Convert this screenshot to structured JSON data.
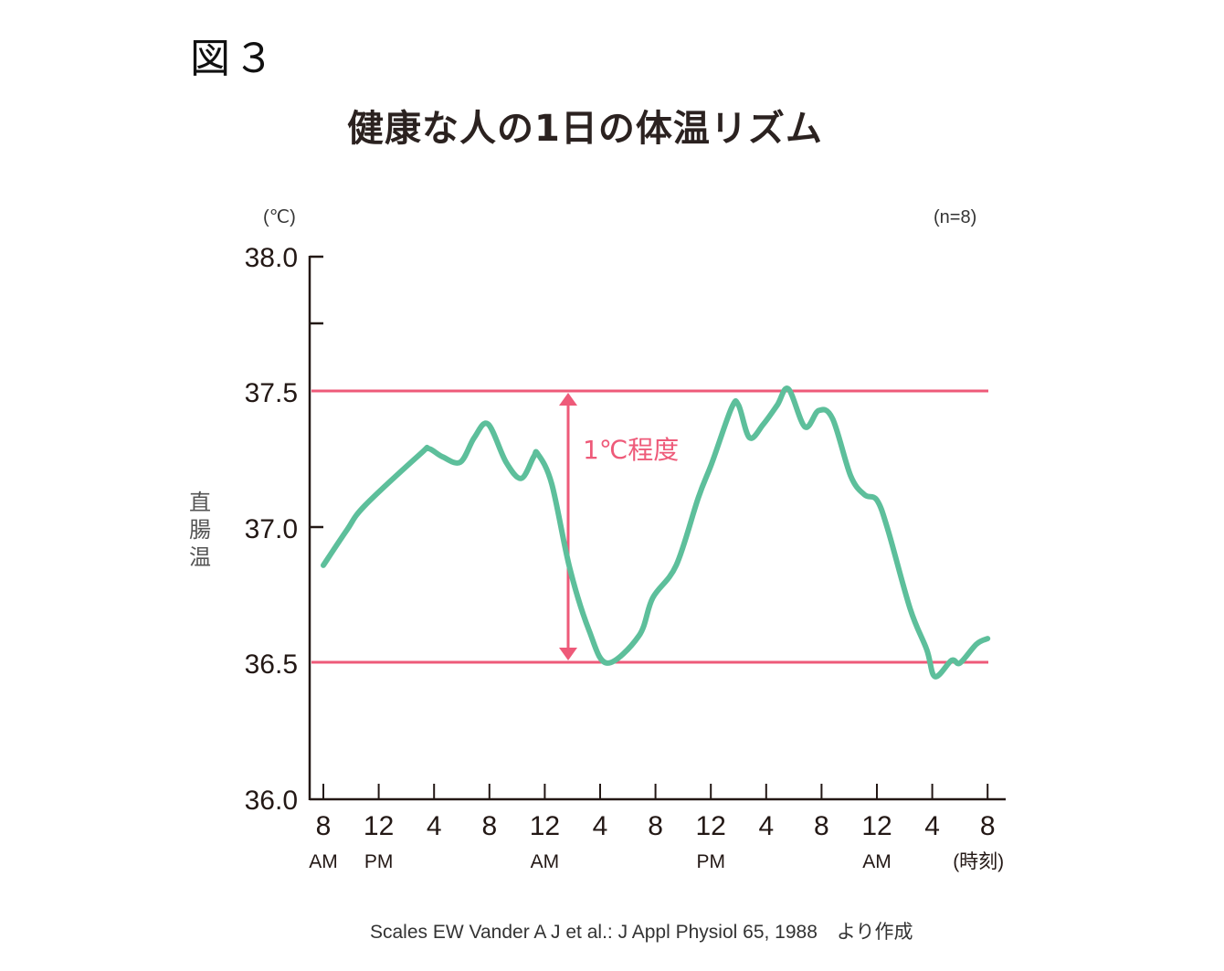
{
  "figure_label": "図３",
  "title": "健康な人の1日の体温リズム",
  "unit_label": "(℃)",
  "sample_size": "(n=8)",
  "y_axis_label": "直腸温",
  "annotation": "1℃程度",
  "source": "Scales EW Vander A J et al.: J Appl Physiol 65, 1988　より作成",
  "colors": {
    "curve": "#5dbf9b",
    "reference_lines": "#ee5a79",
    "axis": "#231815",
    "text": "#231815"
  },
  "chart_data": {
    "type": "line",
    "title": "健康な人の1日の体温リズム",
    "xlabel": "(時刻)",
    "ylabel": "直腸温 (℃)",
    "ylim": [
      36.0,
      38.0
    ],
    "y_ticks": [
      "38.0",
      "37.5",
      "37.0",
      "36.5",
      "36.0"
    ],
    "x_ticks": [
      {
        "hour": "8",
        "period": "AM"
      },
      {
        "hour": "12",
        "period": "PM"
      },
      {
        "hour": "4",
        "period": ""
      },
      {
        "hour": "8",
        "period": ""
      },
      {
        "hour": "12",
        "period": "AM"
      },
      {
        "hour": "4",
        "period": ""
      },
      {
        "hour": "8",
        "period": ""
      },
      {
        "hour": "12",
        "period": "PM"
      },
      {
        "hour": "4",
        "period": ""
      },
      {
        "hour": "8",
        "period": ""
      },
      {
        "hour": "12",
        "period": "AM"
      },
      {
        "hour": "4",
        "period": ""
      },
      {
        "hour": "8",
        "period": "(時刻)"
      }
    ],
    "grid": false,
    "legend": "none",
    "reference_lines": [
      37.5,
      36.5
    ],
    "annotations": [
      {
        "text": "1℃程度",
        "type": "double-arrow",
        "from": 36.5,
        "to": 37.5,
        "at_hours_from_start": 22.5
      }
    ],
    "series": [
      {
        "name": "直腸温",
        "hours_from_8am": [
          0,
          1.7,
          3.0,
          7.0,
          7.6,
          8.6,
          9.9,
          10.9,
          11.9,
          13.2,
          14.3,
          15.2,
          15.5,
          16.5,
          17.8,
          19.2,
          20.5,
          22.8,
          23.8,
          25.5,
          27.1,
          28.1,
          29.5,
          30.0,
          30.8,
          31.8,
          32.8,
          33.6,
          34.8,
          35.8,
          36.8,
          38.1,
          39.1,
          40.0,
          40.8,
          42.4,
          43.6,
          44.2,
          45.4,
          46.0,
          47.2,
          48.0
        ],
        "values": [
          36.86,
          36.99,
          37.08,
          37.27,
          37.29,
          37.26,
          37.24,
          37.33,
          37.38,
          37.24,
          37.18,
          37.26,
          37.27,
          37.16,
          36.85,
          36.62,
          36.5,
          36.6,
          36.74,
          36.86,
          37.11,
          37.24,
          37.44,
          37.45,
          37.33,
          37.38,
          37.45,
          37.51,
          37.37,
          37.43,
          37.4,
          37.19,
          37.12,
          37.1,
          36.99,
          36.7,
          36.55,
          36.45,
          36.51,
          36.5,
          36.57,
          36.59
        ]
      }
    ]
  }
}
